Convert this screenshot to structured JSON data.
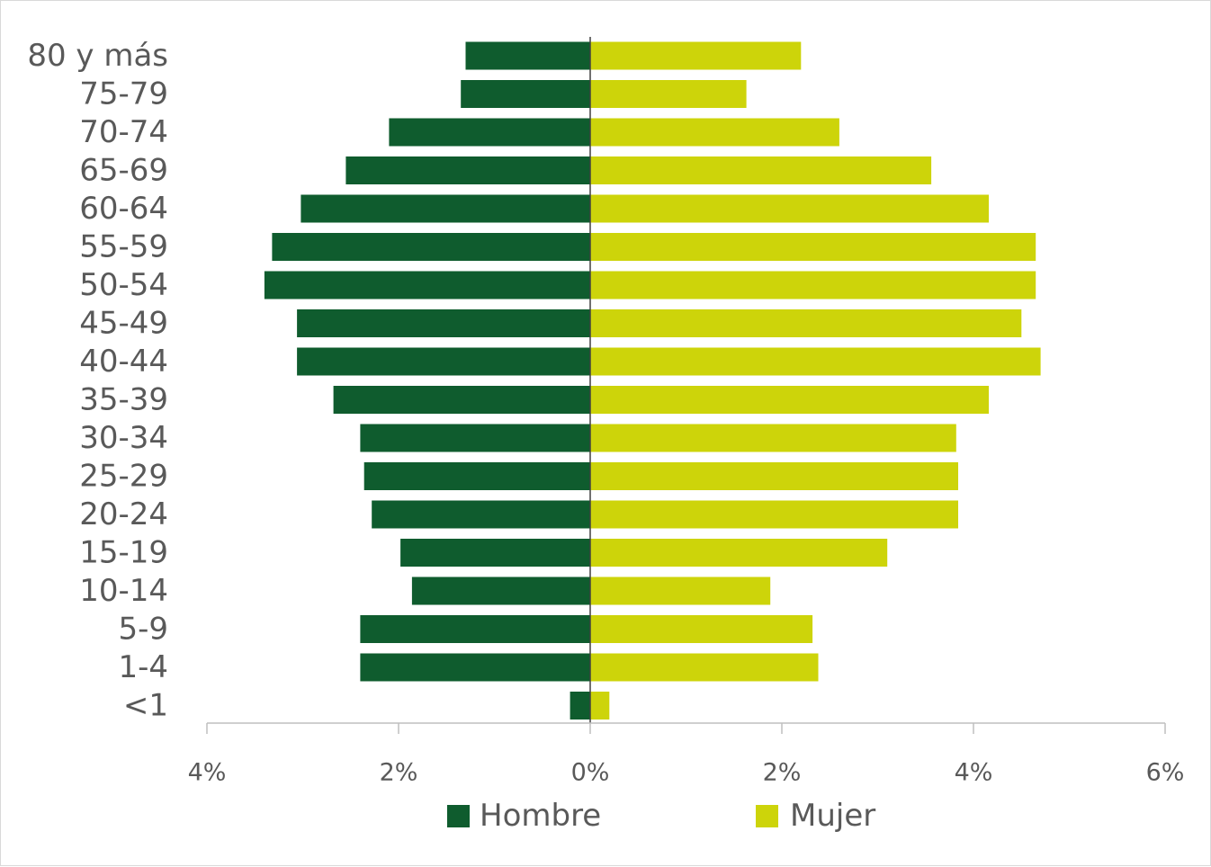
{
  "chart_data": {
    "type": "bar",
    "orientation": "horizontal",
    "layout": "population-pyramid",
    "categories": [
      "80 y más",
      "75-79",
      "70-74",
      "65-69",
      "60-64",
      "55-59",
      "50-54",
      "45-49",
      "40-44",
      "35-39",
      "30-34",
      "25-29",
      "20-24",
      "15-19",
      "10-14",
      "5-9",
      "1-4",
      "<1"
    ],
    "series": [
      {
        "name": "Hombre",
        "color": "#0f5c2e",
        "side": "left",
        "values": [
          1.3,
          1.35,
          2.1,
          2.55,
          3.02,
          3.32,
          3.4,
          3.06,
          3.06,
          2.68,
          2.4,
          2.36,
          2.28,
          1.98,
          1.86,
          2.4,
          2.4,
          0.21
        ]
      },
      {
        "name": "Mujer",
        "color": "#cdd40a",
        "side": "right",
        "values": [
          2.2,
          1.63,
          2.6,
          3.56,
          4.16,
          4.65,
          4.65,
          4.5,
          4.7,
          4.16,
          3.82,
          3.84,
          3.84,
          3.1,
          1.88,
          2.32,
          2.38,
          0.2
        ]
      }
    ],
    "x_ticks": [
      "4%",
      "2%",
      "0%",
      "2%",
      "4%",
      "6%"
    ],
    "xlim": [
      -4,
      6
    ],
    "unit": "%",
    "legend": "bottom-center",
    "grid": false
  }
}
